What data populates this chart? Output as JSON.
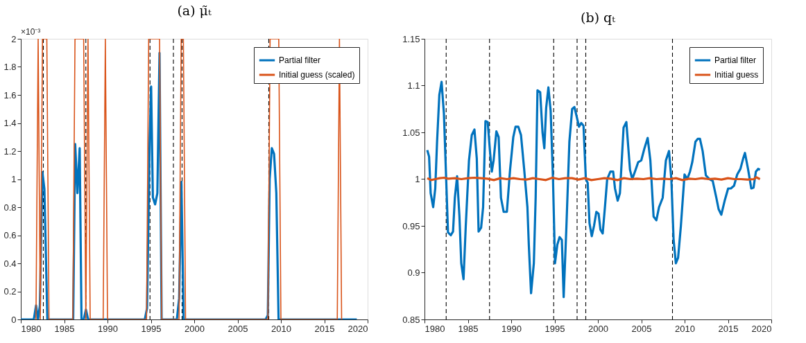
{
  "chart_data": [
    {
      "type": "line",
      "title": "(a) μ̃ₜ",
      "xlim": [
        1980,
        2020
      ],
      "xticks": [
        1980,
        1985,
        1990,
        1995,
        2000,
        2005,
        2010,
        2015,
        2020
      ],
      "ylim": [
        0,
        2
      ],
      "yticks": [
        0,
        0.2,
        0.4,
        0.6,
        0.8,
        1,
        1.2,
        1.4,
        1.6,
        1.8,
        2
      ],
      "legend": "top right",
      "annotations": [
        "×10⁻³"
      ],
      "ref_lines": [
        {
          "axis": "x",
          "value": 1982.6,
          "color": "#000000",
          "line_style": "dashed"
        },
        {
          "axis": "x",
          "value": 1987.5,
          "color": "#000000",
          "line_style": "dashed"
        },
        {
          "axis": "x",
          "value": 1994.9,
          "color": "#000000",
          "line_style": "dashed"
        },
        {
          "axis": "x",
          "value": 1997.6,
          "color": "#000000",
          "line_style": "dashed"
        },
        {
          "axis": "x",
          "value": 1998.6,
          "color": "#000000",
          "line_style": "dashed"
        },
        {
          "axis": "x",
          "value": 2008.6,
          "color": "#000000",
          "line_style": "dashed"
        }
      ],
      "series": [
        {
          "name": "Partial filter",
          "color": "#0072bd",
          "x": [
            1980,
            1981.5,
            1981.76,
            1981.99,
            1982.2,
            1982.49,
            1982.72,
            1983.06,
            1986.04,
            1986.27,
            1986.53,
            1986.79,
            1987.0,
            1987.25,
            1987.51,
            1987.77,
            1994.3,
            1994.56,
            1994.87,
            1995.03,
            1995.23,
            1995.49,
            1995.75,
            1996.0,
            1996.24,
            1998.0,
            1998.26,
            1998.52,
            1998.78,
            2008.23,
            2008.49,
            2008.7,
            2008.95,
            2009.21,
            2009.47,
            2009.73,
            2018.75
          ],
          "values": [
            0,
            0,
            0.1,
            0,
            0.1,
            1.05,
            0.93,
            0,
            0,
            1.25,
            0.9,
            1.22,
            0,
            0,
            0.07,
            0,
            0,
            0.08,
            1.3,
            1.66,
            0.87,
            0.82,
            0.9,
            1.9,
            0,
            0,
            0.15,
            0.98,
            0,
            0,
            0.03,
            1.0,
            1.22,
            1.18,
            0.9,
            0,
            0
          ]
        },
        {
          "name": "Initial guess (scaled)",
          "color": "#d95319",
          "x": [
            1981.75,
            1982.0,
            1982.25,
            1982.5,
            1983.0,
            1983.25,
            1986.0,
            1986.25,
            1987.25,
            1987.5,
            1987.75,
            1988.0,
            1989.5,
            1989.75,
            1990.0,
            1994.5,
            1994.75,
            1996.0,
            1996.25,
            1998.25,
            1998.5,
            1998.75,
            1999.0,
            2008.5,
            2008.75,
            2009.75,
            2010.0,
            2016.5,
            2016.75,
            2017.0
          ],
          "values": [
            0,
            2,
            0,
            2,
            2,
            0,
            0,
            2,
            2,
            0,
            2,
            0,
            0,
            2,
            0,
            0,
            2,
            2,
            0,
            0,
            2,
            2,
            0,
            0,
            2,
            2,
            0,
            0,
            2,
            0
          ]
        }
      ]
    },
    {
      "type": "line",
      "title": "(b) qₜ",
      "xlim": [
        1980,
        2020
      ],
      "xticks": [
        1980,
        1985,
        1990,
        1995,
        2000,
        2005,
        2010,
        2015,
        2020
      ],
      "ylim": [
        0.85,
        1.15
      ],
      "yticks": [
        0.85,
        0.9,
        0.95,
        1,
        1.05,
        1.1,
        1.15
      ],
      "legend": "top right",
      "ref_lines": [
        {
          "axis": "x",
          "value": 1982.5,
          "color": "#000000",
          "line_style": "dashed"
        },
        {
          "axis": "x",
          "value": 1987.5,
          "color": "#000000",
          "line_style": "dashed"
        },
        {
          "axis": "x",
          "value": 1994.9,
          "color": "#000000",
          "line_style": "dashed"
        },
        {
          "axis": "x",
          "value": 1997.6,
          "color": "#000000",
          "line_style": "dashed"
        },
        {
          "axis": "x",
          "value": 1998.6,
          "color": "#000000",
          "line_style": "dashed"
        },
        {
          "axis": "x",
          "value": 2008.6,
          "color": "#000000",
          "line_style": "dashed"
        }
      ],
      "series": [
        {
          "name": "Partial filter",
          "color": "#0072bd",
          "x": [
            1980.32,
            1980.53,
            1980.71,
            1981.0,
            1981.24,
            1981.45,
            1981.71,
            1981.97,
            1982.24,
            1982.5,
            1982.71,
            1983.03,
            1983.29,
            1983.5,
            1983.76,
            1984.03,
            1984.24,
            1984.5,
            1984.76,
            1985.13,
            1985.45,
            1985.76,
            1986.03,
            1986.24,
            1986.53,
            1986.76,
            1987.03,
            1987.29,
            1987.55,
            1987.76,
            1987.97,
            1988.29,
            1988.55,
            1988.82,
            1989.13,
            1989.5,
            1989.87,
            1990.24,
            1990.5,
            1990.82,
            1991.13,
            1991.5,
            1991.87,
            1992.03,
            1992.29,
            1992.61,
            1992.82,
            1993.03,
            1993.34,
            1993.61,
            1993.82,
            1994.03,
            1994.29,
            1994.55,
            1994.82,
            1995.05,
            1995.32,
            1995.58,
            1995.84,
            1996.05,
            1996.37,
            1996.71,
            1997.03,
            1997.29,
            1997.55,
            1997.82,
            1998.08,
            1998.34,
            1998.61,
            1998.82,
            1999.03,
            1999.29,
            1999.55,
            1999.82,
            2000.08,
            2000.29,
            2000.55,
            2000.81,
            2001.07,
            2001.44,
            2001.76,
            2001.97,
            2002.28,
            2002.54,
            2002.96,
            2003.28,
            2003.7,
            2003.96,
            2004.27,
            2004.64,
            2005.0,
            2005.37,
            2005.74,
            2006.05,
            2006.42,
            2006.74,
            2007.05,
            2007.47,
            2007.84,
            2008.2,
            2008.47,
            2008.73,
            2008.99,
            2009.25,
            2009.57,
            2009.99,
            2010.3,
            2010.62,
            2010.88,
            2011.25,
            2011.51,
            2011.77,
            2012.08,
            2012.45,
            2012.87,
            2013.24,
            2013.66,
            2013.92,
            2014.23,
            2014.65,
            2015.02,
            2015.33,
            2015.7,
            2016.07,
            2016.44,
            2016.75,
            2016.96,
            2017.33,
            2017.69,
            2017.95,
            2018.22,
            2018.48,
            2018.69
          ],
          "values": [
            1.031,
            1.024,
            0.985,
            0.97,
            0.99,
            1.04,
            1.09,
            1.104,
            1.07,
            1.0,
            0.943,
            0.94,
            0.944,
            0.98,
            1.003,
            0.96,
            0.91,
            0.893,
            0.95,
            1.02,
            1.047,
            1.053,
            1.022,
            0.944,
            0.948,
            0.97,
            1.062,
            1.061,
            1.03,
            1.008,
            1.02,
            1.051,
            1.045,
            0.98,
            0.965,
            0.965,
            1.01,
            1.045,
            1.056,
            1.056,
            1.047,
            1.01,
            0.97,
            0.93,
            0.878,
            0.91,
            0.98,
            1.095,
            1.093,
            1.05,
            1.033,
            1.076,
            1.098,
            1.073,
            1.0,
            0.91,
            0.93,
            0.938,
            0.935,
            0.874,
            0.95,
            1.04,
            1.075,
            1.077,
            1.067,
            1.056,
            1.06,
            1.057,
            1.0,
            0.996,
            0.953,
            0.939,
            0.95,
            0.965,
            0.963,
            0.946,
            0.942,
            0.97,
            1.0,
            1.008,
            1.008,
            0.99,
            0.977,
            0.985,
            1.055,
            1.061,
            1.01,
            1.0,
            1.008,
            1.018,
            1.02,
            1.033,
            1.044,
            1.02,
            0.96,
            0.956,
            0.97,
            0.98,
            1.02,
            1.03,
            1.0,
            0.935,
            0.91,
            0.916,
            0.95,
            1.005,
            1.0,
            1.008,
            1.018,
            1.04,
            1.043,
            1.043,
            1.03,
            1.004,
            1.0,
            0.998,
            0.98,
            0.968,
            0.962,
            0.978,
            0.99,
            0.99,
            0.993,
            1.005,
            1.011,
            1.022,
            1.028,
            1.01,
            0.99,
            0.991,
            1.008,
            1.011,
            1.01
          ]
        },
        {
          "name": "Initial guess",
          "color": "#d95319",
          "x": [
            1980.32,
            1980.75,
            1981.25,
            1981.75,
            1982.25,
            1982.75,
            1983.5,
            1984.25,
            1985.0,
            1985.75,
            1986.5,
            1987.25,
            1988.0,
            1988.75,
            1989.5,
            1990.25,
            1991.0,
            1991.75,
            1992.5,
            1993.25,
            1994.0,
            1994.75,
            1995.5,
            1996.25,
            1997.0,
            1997.75,
            1998.5,
            1999.25,
            2000.0,
            2000.75,
            2001.5,
            2002.25,
            2003.0,
            2003.75,
            2004.5,
            2005.25,
            2006.0,
            2006.75,
            2007.5,
            2008.25,
            2009.0,
            2009.75,
            2010.5,
            2011.25,
            2012.0,
            2012.75,
            2013.5,
            2014.25,
            2015.0,
            2015.75,
            2016.5,
            2017.25,
            2018.0,
            2018.25,
            2018.69
          ],
          "values": [
            1.001,
            0.999,
            1.0,
            1.001,
            1.0015,
            1.0005,
            1.001,
            1.0,
            1.001,
            1.0015,
            1.001,
            1.0005,
            0.999,
            1.001,
            1.0,
            1.001,
            1.0,
            0.9995,
            1.001,
            1.0,
            0.999,
            1.0015,
            1.0,
            1.001,
            1.001,
            0.9995,
            1.001,
            0.999,
            1.0,
            1.001,
            1.0005,
            0.999,
            1.001,
            1.0,
            1.0005,
            1.0,
            1.001,
            1.0,
            1.0005,
            1.0,
            1.001,
            0.999,
            1.0005,
            1.0,
            1.001,
            1.0,
            1.0005,
            0.9995,
            1.001,
            1.0,
            1.0,
            0.9995,
            1.0,
            1.002,
            1.0
          ]
        }
      ]
    }
  ]
}
